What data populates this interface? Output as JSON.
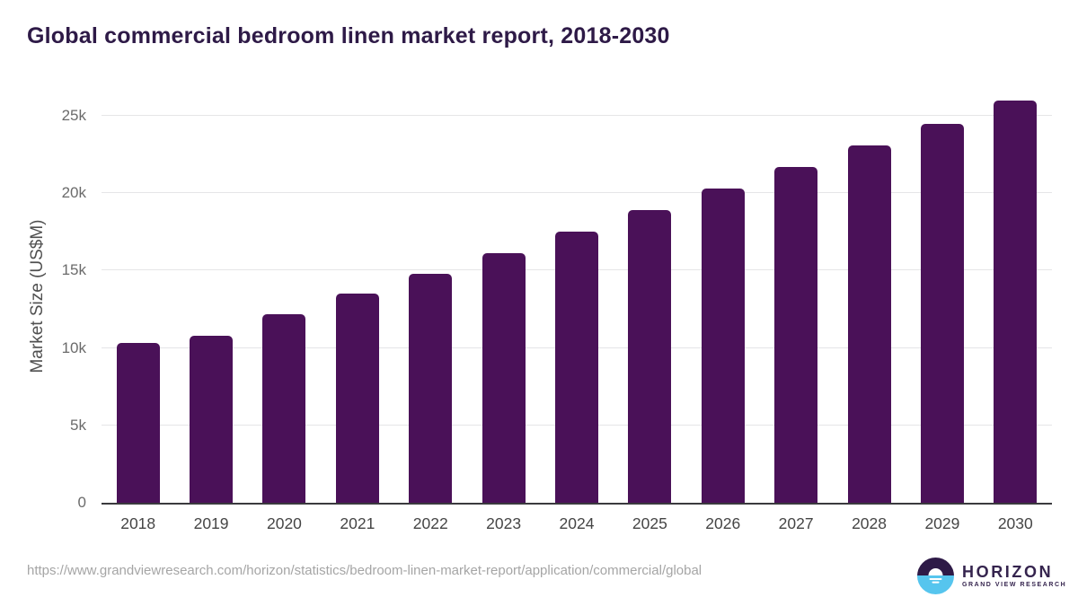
{
  "title": "Global commercial bedroom linen market report, 2018-2030",
  "chart_data": {
    "type": "bar",
    "title": "Global commercial bedroom linen market report, 2018-2030",
    "categories": [
      "2018",
      "2019",
      "2020",
      "2021",
      "2022",
      "2023",
      "2024",
      "2025",
      "2026",
      "2027",
      "2028",
      "2029",
      "2030"
    ],
    "values": [
      10300,
      10800,
      12200,
      13500,
      14800,
      16100,
      17500,
      18900,
      20300,
      21700,
      23100,
      24500,
      26000
    ],
    "unit": "US$M",
    "xlabel": "",
    "ylabel": "Market Size (US$M)",
    "ylim": [
      0,
      26680
    ],
    "yticks": [
      {
        "value": 0,
        "label": "0"
      },
      {
        "value": 5000,
        "label": "5k"
      },
      {
        "value": 10000,
        "label": "10k"
      },
      {
        "value": 15000,
        "label": "15k"
      },
      {
        "value": 20000,
        "label": "20k"
      },
      {
        "value": 25000,
        "label": "25k"
      }
    ],
    "grid": true,
    "legend": false,
    "bar_color": "#4a1158"
  },
  "colors": {
    "title": "#2e1a47",
    "bar": "#4a1158",
    "gridline": "#e5e5e7",
    "axis_line": "#3a3a3e",
    "logo_purple": "#2e1a47",
    "logo_blue": "#56c5ee"
  },
  "footer": {
    "source_url": "https://www.grandviewresearch.com/horizon/statistics/bedroom-linen-market-report/application/commercial/global",
    "logo_name": "HORIZON",
    "logo_tagline": "GRAND VIEW RESEARCH"
  }
}
